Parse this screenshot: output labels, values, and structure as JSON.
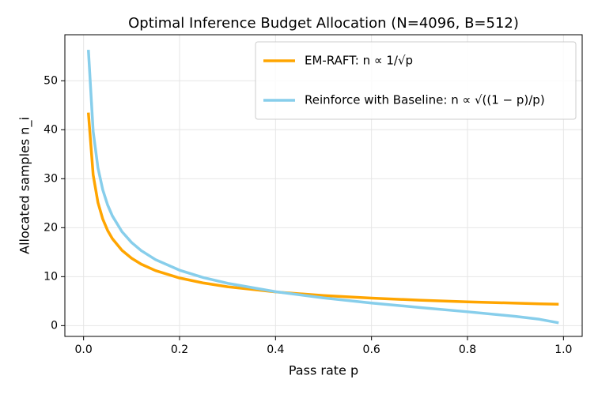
{
  "chart_data": {
    "type": "line",
    "title": "Optimal Inference Budget Allocation (N=4096, B=512)",
    "x_label": "Pass rate p",
    "y_label": "Allocated samples n_i",
    "x": [
      0.01,
      0.02,
      0.03,
      0.04,
      0.05,
      0.06,
      0.08,
      0.1,
      0.12,
      0.15,
      0.2,
      0.25,
      0.3,
      0.4,
      0.5,
      0.6,
      0.7,
      0.8,
      0.9,
      0.95,
      0.99
    ],
    "series": [
      {
        "name": "EM-RAFT: n ∝ 1/√p",
        "color": "#ffa500",
        "values": [
          43.5,
          30.76,
          25.11,
          21.75,
          19.45,
          17.76,
          15.38,
          13.76,
          12.56,
          11.23,
          9.73,
          8.7,
          7.94,
          6.88,
          6.15,
          5.62,
          5.2,
          4.86,
          4.59,
          4.46,
          4.37
        ]
      },
      {
        "name": "Reinforce with Baseline: n ∝ √((1 − p)/p)",
        "color": "#87ceeb",
        "values": [
          56.32,
          39.62,
          32.18,
          27.73,
          24.67,
          22.4,
          19.19,
          16.98,
          15.33,
          13.47,
          11.32,
          9.8,
          8.65,
          6.93,
          5.66,
          4.62,
          3.71,
          2.83,
          1.89,
          1.3,
          0.57
        ]
      }
    ],
    "xlim": [
      -0.039,
      1.039
    ],
    "ylim": [
      -2.2,
      59.4
    ],
    "xticks": [
      {
        "value": 0,
        "label": "0.0"
      },
      {
        "value": 0.2,
        "label": "0.2"
      },
      {
        "value": 0.4,
        "label": "0.4"
      },
      {
        "value": 0.6,
        "label": "0.6"
      },
      {
        "value": 0.8,
        "label": "0.8"
      },
      {
        "value": 1,
        "label": "1.0"
      }
    ],
    "yticks": [
      0,
      10,
      20,
      30,
      40,
      50
    ],
    "grid": true,
    "legend": "upper right"
  }
}
